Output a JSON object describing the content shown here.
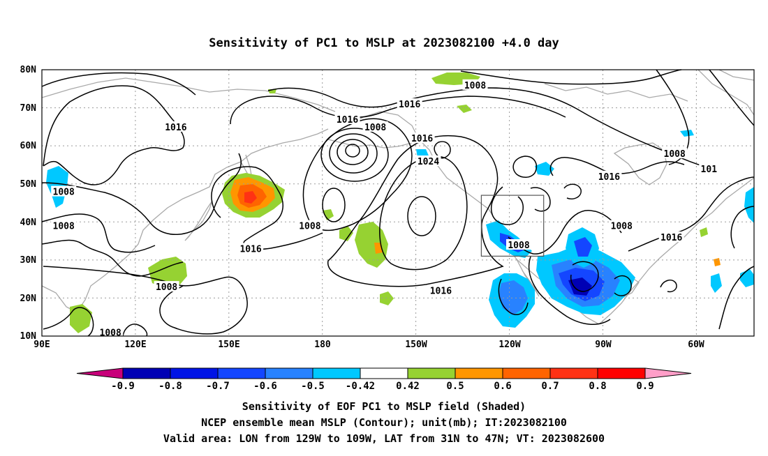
{
  "title": "Sensitivity of PC1 to MSLP at 2023082100 +4.0 day",
  "axes": {
    "lat_labels": [
      "80N",
      "70N",
      "60N",
      "50N",
      "40N",
      "30N",
      "20N",
      "10N"
    ],
    "lon_labels": [
      "90E",
      "120E",
      "150E",
      "180",
      "150W",
      "120W",
      "90W",
      "60W"
    ]
  },
  "colorbar": {
    "colors": [
      "#c8007a",
      "#0000b4",
      "#0014e6",
      "#1446ff",
      "#2882ff",
      "#00c8ff",
      "#ffffff",
      "#96d232",
      "#ff9600",
      "#ff6400",
      "#ff3214",
      "#ff0000",
      "#ff9ec8"
    ],
    "labels": [
      "-0.9",
      "-0.8",
      "-0.7",
      "-0.6",
      "-0.5",
      "-0.42",
      "0.42",
      "0.5",
      "0.6",
      "0.7",
      "0.8",
      "0.9"
    ]
  },
  "contour_labels": [
    {
      "text": "1016",
      "lon": 133,
      "lat": 65
    },
    {
      "text": "1008",
      "lon": 97,
      "lat": 48
    },
    {
      "text": "1008",
      "lon": 97,
      "lat": 39
    },
    {
      "text": "1016",
      "lon": 157,
      "lat": 33
    },
    {
      "text": "1008",
      "lon": 130,
      "lat": 23
    },
    {
      "text": "1008",
      "lon": 112,
      "lat": 11
    },
    {
      "text": "1008",
      "lon": 176,
      "lat": 39
    },
    {
      "text": "1016",
      "lon": 188,
      "lat": 67
    },
    {
      "text": "1008",
      "lon": 197,
      "lat": 65
    },
    {
      "text": "1016",
      "lon": 208,
      "lat": 71
    },
    {
      "text": "1016",
      "lon": 212,
      "lat": 62
    },
    {
      "text": "1024",
      "lon": 214,
      "lat": 56
    },
    {
      "text": "1008",
      "lon": 229,
      "lat": 76
    },
    {
      "text": "1016",
      "lon": 218,
      "lat": 22
    },
    {
      "text": "1008",
      "lon": 243,
      "lat": 34
    },
    {
      "text": "1016",
      "lon": 272,
      "lat": 52
    },
    {
      "text": "1008",
      "lon": 276,
      "lat": 39
    },
    {
      "text": "1016",
      "lon": 292,
      "lat": 36
    },
    {
      "text": "1008",
      "lon": 293,
      "lat": 58
    },
    {
      "text": "101",
      "lon": 304,
      "lat": 54
    }
  ],
  "valid_area": {
    "lon_min": 231,
    "lon_max": 251,
    "lat_min": 31,
    "lat_max": 47
  },
  "footer": {
    "line1": "Sensitivity of EOF PC1 to MSLP field (Shaded)",
    "line2": "NCEP ensemble mean MSLP (Contour); unit(mb); IT:2023082100",
    "line3": "Valid area: LON from 129W to 109W, LAT from 31N to 47N; VT: 2023082600"
  }
}
